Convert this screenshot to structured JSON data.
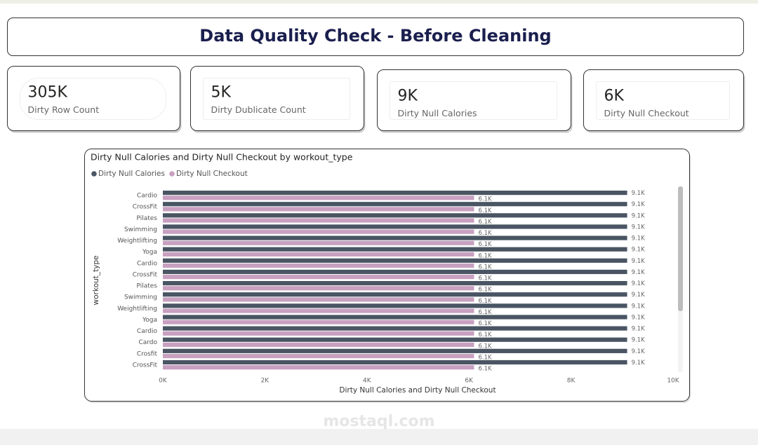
{
  "header": {
    "title": "Data Quality Check - Before Cleaning"
  },
  "cards": [
    {
      "value": "305K",
      "label": "Dirty Row Count"
    },
    {
      "value": "5K",
      "label": "Dirty Dublicate Count"
    },
    {
      "value": "9K",
      "label": "Dirty Null Calories"
    },
    {
      "value": "6K",
      "label": "Dirty Null Checkout"
    }
  ],
  "chart_data": {
    "type": "hbar",
    "title": "Dirty Null Calories and Dirty Null Checkout by workout_type",
    "x_label": "Dirty Null Calories and Dirty Null Checkout",
    "y_label": "workout_type",
    "categories": [
      "Cardio",
      "CrossFit",
      "Pilates",
      "Swimming",
      "Weightlifting",
      "Yoga",
      "Cardio",
      "CrossFit",
      "Pilates",
      "Swimming",
      "Weightlifting",
      "Yoga",
      "Cardio",
      "Cardo",
      "Crosfit",
      "CrossFit"
    ],
    "series": [
      {
        "name": "Dirty Null Calories",
        "color": "#4a5563",
        "values": [
          9100,
          9100,
          9100,
          9100,
          9100,
          9100,
          9100,
          9100,
          9100,
          9100,
          9100,
          9100,
          9100,
          9100,
          9100,
          9100
        ],
        "value_labels": [
          "9.1K",
          "9.1K",
          "9.1K",
          "9.1K",
          "9.1K",
          "9.1K",
          "9.1K",
          "9.1K",
          "9.1K",
          "9.1K",
          "9.1K",
          "9.1K",
          "9.1K",
          "9.1K",
          "9.1K",
          "9.1K"
        ]
      },
      {
        "name": "Dirty Null Checkout",
        "color": "#c8a0c0",
        "values": [
          6100,
          6100,
          6100,
          6100,
          6100,
          6100,
          6100,
          6100,
          6100,
          6100,
          6100,
          6100,
          6100,
          6100,
          6100,
          6100
        ],
        "value_labels": [
          "6.1K",
          "6.1K",
          "6.1K",
          "6.1K",
          "6.1K",
          "6.1K",
          "6.1K",
          "6.1K",
          "6.1K",
          "6.1K",
          "6.1K",
          "6.1K",
          "6.1K",
          "6.1K",
          "6.1K",
          "6.1K"
        ]
      }
    ],
    "xlim": [
      0,
      10000
    ],
    "xticks": [
      {
        "value": 0,
        "label": "0K"
      },
      {
        "value": 2000,
        "label": "2K"
      },
      {
        "value": 4000,
        "label": "4K"
      },
      {
        "value": 6000,
        "label": "6K"
      },
      {
        "value": 8000,
        "label": "8K"
      },
      {
        "value": 10000,
        "label": "10K"
      }
    ]
  },
  "watermark": "mostaql.com"
}
